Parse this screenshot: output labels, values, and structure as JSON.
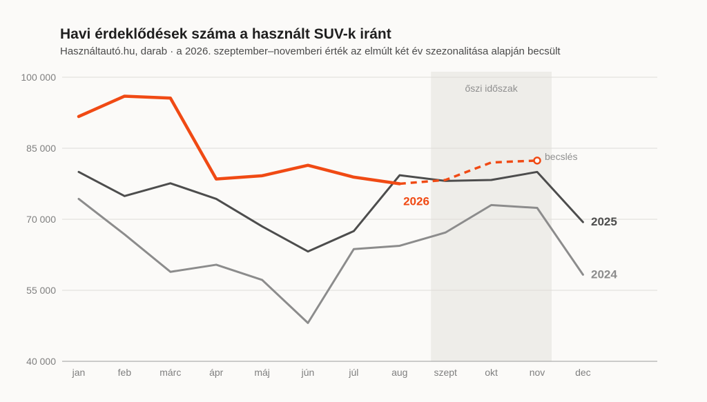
{
  "title": "Havi érdeklődések száma a használt SUV-k iránt",
  "subtitle": "Használtautó.hu, darab · a 2026. szeptember–novemberi érték az elmúlt két év szezonalitása alapján becsült",
  "chart_data": {
    "type": "line",
    "categories": [
      "jan",
      "feb",
      "márc",
      "ápr",
      "máj",
      "jún",
      "júl",
      "aug",
      "szept",
      "okt",
      "nov",
      "dec"
    ],
    "ylim": [
      40000,
      100000
    ],
    "yticks": [
      40000,
      55000,
      70000,
      85000,
      100000
    ],
    "ytick_labels": [
      "40 000",
      "55 000",
      "70 000",
      "85 000",
      "100 000"
    ],
    "grid": true,
    "highlight_band": {
      "from": "szept",
      "to": "nov",
      "label": "őszi időszak",
      "color": "#eeede9"
    },
    "series": [
      {
        "name": "2024",
        "color": "#8c8c8c",
        "values": [
          74300,
          66800,
          58900,
          60400,
          57200,
          48100,
          63700,
          64400,
          67200,
          73000,
          72400,
          58300
        ]
      },
      {
        "name": "2025",
        "color": "#4d4d4d",
        "values": [
          80000,
          74900,
          77600,
          74300,
          68500,
          63200,
          67500,
          79300,
          78100,
          78300,
          80000,
          69400
        ]
      },
      {
        "name": "2026",
        "color": "#f04a14",
        "values": [
          91700,
          96000,
          95600,
          78500,
          79200,
          81400,
          78900,
          77500,
          null,
          null,
          null,
          null
        ],
        "estimate": {
          "label": "becslés",
          "categories": [
            "aug",
            "szept",
            "okt",
            "nov"
          ],
          "values": [
            77500,
            78300,
            82000,
            82400
          ]
        }
      }
    ]
  }
}
